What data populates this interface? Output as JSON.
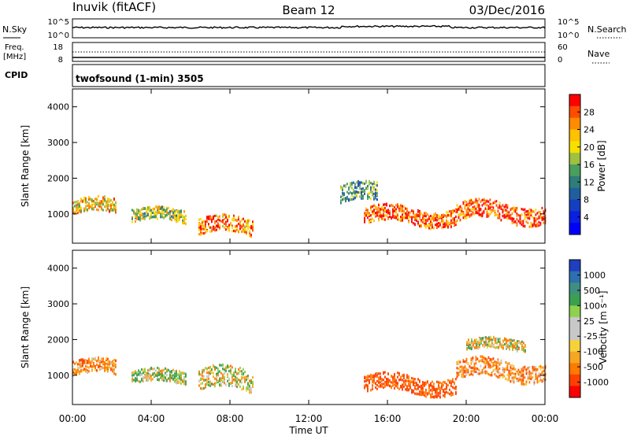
{
  "header": {
    "station": "Inuvik (fitACF)",
    "beam": "Beam 12",
    "date": "03/Dec/2016"
  },
  "panels": {
    "nsky": {
      "label": "N.Sky",
      "top_tick": "10^5",
      "bottom_tick": "10^0",
      "right_top_tick": "10^5",
      "right_bottom_tick": "10^0",
      "right_label": "N.Search"
    },
    "freq": {
      "label_line1": "Freq.",
      "label_line2": "[MHz]",
      "top_tick": "18",
      "bottom_tick": "8",
      "right_top_tick": "60",
      "right_bottom_tick": "0",
      "right_label": "Nave"
    },
    "cpid": {
      "label": "CPID",
      "mode": "twofsound (1-min) 3505"
    }
  },
  "colorbars": {
    "power": {
      "title": "Power [dB]",
      "ticks": [
        "28",
        "24",
        "20",
        "16",
        "12",
        "8",
        "4"
      ],
      "colors": [
        "#ff0000",
        "#ff4d00",
        "#ff8c00",
        "#ffc100",
        "#f5e000",
        "#9fc040",
        "#4a9e5e",
        "#2e7d78",
        "#1f5f9f",
        "#143fbf",
        "#0a1fdf",
        "#0000ff"
      ]
    },
    "velocity": {
      "title": "Velocity [m s⁻¹]",
      "ticks": [
        "1000",
        "500",
        "100",
        "25",
        "-25",
        "-100",
        "-500",
        "-1000"
      ],
      "colors": [
        "#1f3fbf",
        "#2e6fb0",
        "#3f8f80",
        "#3aa050",
        "#8fd04f",
        "#c8c8c8",
        "#c8c8c8",
        "#f5d23c",
        "#f5a623",
        "#ff7a00",
        "#ff4000",
        "#ff0000"
      ]
    }
  },
  "chart_data": [
    {
      "type": "heatmap",
      "name": "Power",
      "ylabel": "Slant Range [km]",
      "xlabel": "Time UT",
      "x_ticks": [
        "00:00",
        "04:00",
        "08:00",
        "12:00",
        "16:00",
        "20:00",
        "00:00"
      ],
      "y_ticks": [
        "1000",
        "2000",
        "3000",
        "4000"
      ],
      "xlim_hours": [
        0,
        24
      ],
      "ylim_km": [
        180,
        4500
      ],
      "colorbar": "Power [dB]",
      "features": [
        {
          "t_start": 0,
          "t_end": 2.2,
          "range_center_km": 1150,
          "range_width_km": 400,
          "value_db": 22
        },
        {
          "t_start": 3.0,
          "t_end": 5.8,
          "range_center_km": 900,
          "range_width_km": 350,
          "value_db": 18
        },
        {
          "t_start": 6.4,
          "t_end": 9.2,
          "range_center_km": 600,
          "range_width_km": 450,
          "value_db": 26
        },
        {
          "t_start": 13.6,
          "t_end": 15.5,
          "range_center_km": 1500,
          "range_width_km": 500,
          "value_db": 14
        },
        {
          "t_start": 14.8,
          "t_end": 19.5,
          "range_center_km": 900,
          "range_width_km": 450,
          "value_db": 28
        },
        {
          "t_start": 19.5,
          "t_end": 24,
          "range_center_km": 1000,
          "range_width_km": 500,
          "value_db": 28
        }
      ]
    },
    {
      "type": "heatmap",
      "name": "Velocity",
      "ylabel": "Slant Range [km]",
      "xlabel": "Time UT",
      "x_ticks": [
        "00:00",
        "04:00",
        "08:00",
        "12:00",
        "16:00",
        "20:00",
        "00:00"
      ],
      "y_ticks": [
        "1000",
        "2000",
        "3000",
        "4000"
      ],
      "xlim_hours": [
        0,
        24
      ],
      "ylim_km": [
        180,
        4500
      ],
      "colorbar": "Velocity [m s⁻¹]",
      "features": [
        {
          "t_start": 0,
          "t_end": 2.2,
          "range_center_km": 1150,
          "range_width_km": 400,
          "value_ms": -150
        },
        {
          "t_start": 3.0,
          "t_end": 5.8,
          "range_center_km": 900,
          "range_width_km": 350,
          "value_ms": 60
        },
        {
          "t_start": 6.4,
          "t_end": 9.2,
          "range_center_km": 800,
          "range_width_km": 600,
          "value_ms": 0
        },
        {
          "t_start": 14.8,
          "t_end": 19.5,
          "range_center_km": 700,
          "range_width_km": 450,
          "value_ms": -300
        },
        {
          "t_start": 19.5,
          "t_end": 24,
          "range_center_km": 1100,
          "range_width_km": 500,
          "value_ms": -150
        },
        {
          "t_start": 20.0,
          "t_end": 23.0,
          "range_center_km": 1800,
          "range_width_km": 300,
          "value_ms": 0
        }
      ]
    }
  ]
}
